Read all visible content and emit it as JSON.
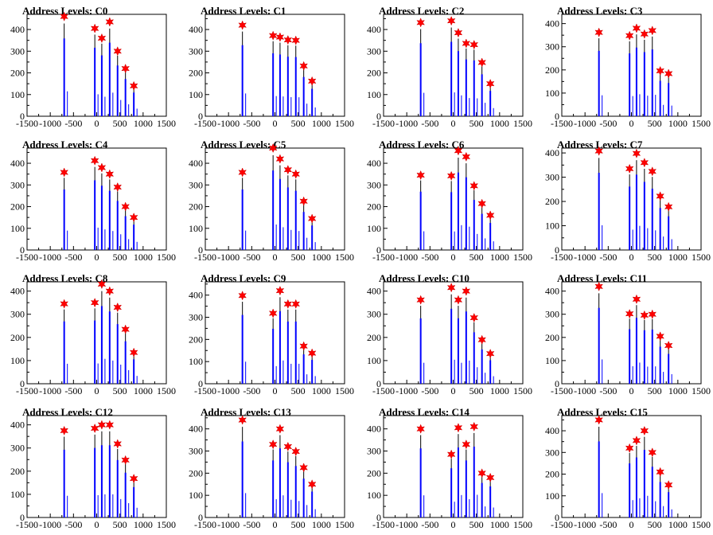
{
  "chart_data": [
    {
      "type": "bar",
      "title": "Address Levels: C0",
      "xlim": [
        -1500,
        1500
      ],
      "ylim": [
        0,
        470
      ],
      "yticks": [
        0,
        100,
        200,
        300,
        400
      ],
      "xticks": [
        -1500,
        -1000,
        -500,
        0,
        500,
        1000,
        1500
      ],
      "peaks_x": [
        -700,
        -40,
        110,
        280,
        450,
        620,
        800
      ],
      "peaks_y": [
        460,
        405,
        360,
        435,
        300,
        220,
        140
      ]
    },
    {
      "type": "bar",
      "title": "Address Levels: C1",
      "xlim": [
        -1500,
        1500
      ],
      "ylim": [
        0,
        470
      ],
      "yticks": [
        0,
        100,
        200,
        300,
        400
      ],
      "xticks": [
        -1500,
        -1000,
        -500,
        0,
        500,
        1000,
        1500
      ],
      "peaks_x": [
        -700,
        -40,
        110,
        280,
        450,
        620,
        800
      ],
      "peaks_y": [
        420,
        372,
        365,
        352,
        350,
        232,
        162
      ]
    },
    {
      "type": "bar",
      "title": "Address Levels: C2",
      "xlim": [
        -1500,
        1500
      ],
      "ylim": [
        0,
        470
      ],
      "yticks": [
        0,
        100,
        200,
        300,
        400
      ],
      "xticks": [
        -1500,
        -1000,
        -500,
        0,
        500,
        1000,
        1500
      ],
      "peaks_x": [
        -700,
        -40,
        110,
        280,
        450,
        620,
        800
      ],
      "peaks_y": [
        432,
        440,
        385,
        336,
        330,
        248,
        150
      ]
    },
    {
      "type": "bar",
      "title": "Address Levels: C3",
      "xlim": [
        -1500,
        1500
      ],
      "ylim": [
        0,
        440
      ],
      "yticks": [
        0,
        100,
        200,
        300,
        400
      ],
      "xticks": [
        -1500,
        -1000,
        -500,
        0,
        500,
        1000,
        1500
      ],
      "peaks_x": [
        -700,
        -40,
        110,
        280,
        450,
        620,
        800
      ],
      "peaks_y": [
        362,
        348,
        380,
        355,
        370,
        196,
        184
      ]
    },
    {
      "type": "bar",
      "title": "Address Levels: C4",
      "xlim": [
        -1500,
        1500
      ],
      "ylim": [
        0,
        470
      ],
      "yticks": [
        0,
        100,
        200,
        300,
        400
      ],
      "xticks": [
        -1500,
        -1000,
        -500,
        0,
        500,
        1000,
        1500
      ],
      "peaks_x": [
        -700,
        -40,
        110,
        280,
        450,
        620,
        800
      ],
      "peaks_y": [
        358,
        412,
        380,
        350,
        290,
        200,
        150
      ]
    },
    {
      "type": "bar",
      "title": "Address Levels: C5",
      "xlim": [
        -1500,
        1500
      ],
      "ylim": [
        0,
        470
      ],
      "yticks": [
        0,
        100,
        200,
        300,
        400
      ],
      "xticks": [
        -1500,
        -1000,
        -500,
        0,
        500,
        1000,
        1500
      ],
      "peaks_x": [
        -700,
        -40,
        110,
        280,
        450,
        620,
        800
      ],
      "peaks_y": [
        358,
        470,
        420,
        370,
        350,
        225,
        145
      ]
    },
    {
      "type": "bar",
      "title": "Address Levels: C6",
      "xlim": [
        -1500,
        1500
      ],
      "ylim": [
        0,
        470
      ],
      "yticks": [
        0,
        100,
        200,
        300,
        400
      ],
      "xticks": [
        -1500,
        -1000,
        -500,
        0,
        500,
        1000,
        1500
      ],
      "peaks_x": [
        -700,
        -40,
        110,
        280,
        450,
        620,
        800
      ],
      "peaks_y": [
        345,
        342,
        458,
        430,
        296,
        214,
        160
      ]
    },
    {
      "type": "bar",
      "title": "Address Levels: C7",
      "xlim": [
        -1500,
        1500
      ],
      "ylim": [
        0,
        420
      ],
      "yticks": [
        0,
        100,
        200,
        300,
        400
      ],
      "xticks": [
        -1500,
        -1000,
        -500,
        0,
        500,
        1000,
        1500
      ],
      "peaks_x": [
        -700,
        -40,
        110,
        280,
        450,
        620,
        800
      ],
      "peaks_y": [
        408,
        335,
        398,
        360,
        324,
        222,
        178
      ]
    },
    {
      "type": "bar",
      "title": "Address Levels: C8",
      "xlim": [
        -1500,
        1500
      ],
      "ylim": [
        0,
        440
      ],
      "yticks": [
        0,
        100,
        200,
        300,
        400
      ],
      "xticks": [
        -1500,
        -1000,
        -500,
        0,
        500,
        1000,
        1500
      ],
      "peaks_x": [
        -700,
        -40,
        110,
        280,
        450,
        620,
        800
      ],
      "peaks_y": [
        345,
        350,
        430,
        400,
        330,
        235,
        135
      ]
    },
    {
      "type": "bar",
      "title": "Address Levels: C9",
      "xlim": [
        -1500,
        1500
      ],
      "ylim": [
        0,
        460
      ],
      "yticks": [
        0,
        100,
        200,
        300,
        400
      ],
      "xticks": [
        -1500,
        -1000,
        -500,
        0,
        500,
        1000,
        1500
      ],
      "peaks_x": [
        -700,
        -40,
        110,
        280,
        450,
        620,
        800
      ],
      "peaks_y": [
        398,
        318,
        420,
        360,
        360,
        170,
        138
      ]
    },
    {
      "type": "bar",
      "title": "Address Levels: C10",
      "xlim": [
        -1500,
        1500
      ],
      "ylim": [
        0,
        440
      ],
      "yticks": [
        0,
        100,
        200,
        300,
        400
      ],
      "xticks": [
        -1500,
        -1000,
        -500,
        0,
        500,
        1000,
        1500
      ],
      "peaks_x": [
        -700,
        -40,
        110,
        280,
        450,
        620,
        800
      ],
      "peaks_y": [
        362,
        415,
        362,
        400,
        285,
        190,
        130
      ]
    },
    {
      "type": "bar",
      "title": "Address Levels: C11",
      "xlim": [
        -1500,
        1500
      ],
      "ylim": [
        0,
        440
      ],
      "yticks": [
        0,
        100,
        200,
        300,
        400
      ],
      "xticks": [
        -1500,
        -1000,
        -500,
        0,
        500,
        1000,
        1500
      ],
      "peaks_x": [
        -700,
        -40,
        110,
        280,
        450,
        620,
        800
      ],
      "peaks_y": [
        420,
        302,
        365,
        296,
        300,
        205,
        165
      ]
    },
    {
      "type": "bar",
      "title": "Address Levels: C12",
      "xlim": [
        -1500,
        1500
      ],
      "ylim": [
        0,
        440
      ],
      "yticks": [
        0,
        100,
        200,
        300,
        400
      ],
      "xticks": [
        -1500,
        -1000,
        -500,
        0,
        500,
        1000,
        1500
      ],
      "peaks_x": [
        -700,
        -40,
        110,
        280,
        450,
        620,
        800
      ],
      "peaks_y": [
        375,
        385,
        400,
        400,
        318,
        248,
        168
      ]
    },
    {
      "type": "bar",
      "title": "Address Levels: C13",
      "xlim": [
        -1500,
        1500
      ],
      "ylim": [
        0,
        460
      ],
      "yticks": [
        0,
        100,
        200,
        300,
        400
      ],
      "xticks": [
        -1500,
        -1000,
        -500,
        0,
        500,
        1000,
        1500
      ],
      "peaks_x": [
        -700,
        -40,
        110,
        280,
        450,
        620,
        800
      ],
      "peaks_y": [
        440,
        330,
        400,
        320,
        298,
        225,
        150
      ]
    },
    {
      "type": "bar",
      "title": "Address Levels: C14",
      "xlim": [
        -1500,
        1500
      ],
      "ylim": [
        0,
        460
      ],
      "yticks": [
        0,
        100,
        200,
        300,
        400
      ],
      "xticks": [
        -1500,
        -1000,
        -500,
        0,
        500,
        1000,
        1500
      ],
      "peaks_x": [
        -700,
        -40,
        110,
        280,
        450,
        620,
        800
      ],
      "peaks_y": [
        400,
        285,
        405,
        330,
        410,
        200,
        180
      ]
    },
    {
      "type": "bar",
      "title": "Address Levels: C15",
      "xlim": [
        -1500,
        1500
      ],
      "ylim": [
        0,
        470
      ],
      "yticks": [
        0,
        100,
        200,
        300,
        400
      ],
      "xticks": [
        -1500,
        -1000,
        -500,
        0,
        500,
        1000,
        1500
      ],
      "peaks_x": [
        -700,
        -40,
        110,
        280,
        450,
        620,
        800
      ],
      "peaks_y": [
        450,
        320,
        355,
        400,
        300,
        210,
        150
      ]
    }
  ],
  "colors": {
    "histogram": "#0000ff",
    "histogram_edge": "#000000",
    "marker": "#ff0000",
    "axis": "#000000"
  }
}
